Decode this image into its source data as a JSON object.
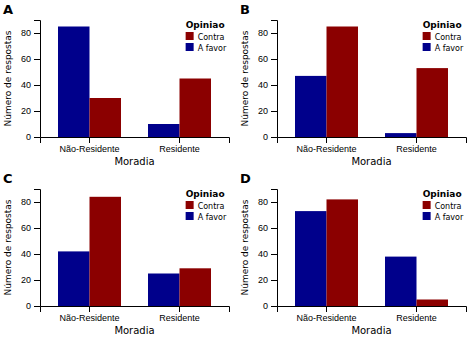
{
  "chart_data": [
    {
      "type": "bar",
      "title": "A",
      "xlabel": "Moradia",
      "ylabel": "Número de respostas",
      "categories": [
        "Não-Residente",
        "Residente"
      ],
      "series": [
        {
          "name": "A favor",
          "color": "#00008B",
          "values": [
            85,
            10
          ]
        },
        {
          "name": "Contra",
          "color": "#8B0000",
          "values": [
            30,
            45
          ]
        }
      ],
      "ylim": [
        0,
        90
      ],
      "yticks": [
        0,
        20,
        40,
        60,
        80
      ],
      "grid": false,
      "legend": "upper right",
      "legend_title": "Opiniao"
    },
    {
      "type": "bar",
      "title": "B",
      "xlabel": "Moradia",
      "ylabel": "Número de respostas",
      "categories": [
        "Não-Residente",
        "Residente"
      ],
      "series": [
        {
          "name": "A favor",
          "color": "#00008B",
          "values": [
            47,
            3
          ]
        },
        {
          "name": "Contra",
          "color": "#8B0000",
          "values": [
            85,
            53
          ]
        }
      ],
      "ylim": [
        0,
        90
      ],
      "yticks": [
        0,
        20,
        40,
        60,
        80
      ],
      "grid": false,
      "legend": "upper right",
      "legend_title": "Opiniao"
    },
    {
      "type": "bar",
      "title": "C",
      "xlabel": "Moradia",
      "ylabel": "Número de respostas",
      "categories": [
        "Não-Residente",
        "Residente"
      ],
      "series": [
        {
          "name": "A favor",
          "color": "#00008B",
          "values": [
            42,
            25
          ]
        },
        {
          "name": "Contra",
          "color": "#8B0000",
          "values": [
            84,
            29
          ]
        }
      ],
      "ylim": [
        0,
        90
      ],
      "yticks": [
        0,
        20,
        40,
        60,
        80
      ],
      "grid": false,
      "legend": "upper right",
      "legend_title": "Opiniao"
    },
    {
      "type": "bar",
      "title": "D",
      "xlabel": "Moradia",
      "ylabel": "Número de respostas",
      "categories": [
        "Não-Residente",
        "Residente"
      ],
      "series": [
        {
          "name": "A favor",
          "color": "#00008B",
          "values": [
            73,
            38
          ]
        },
        {
          "name": "Contra",
          "color": "#8B0000",
          "values": [
            82,
            5
          ]
        }
      ],
      "ylim": [
        0,
        90
      ],
      "yticks": [
        0,
        20,
        40,
        60,
        80
      ],
      "grid": false,
      "legend": "upper right",
      "legend_title": "Opiniao"
    }
  ]
}
